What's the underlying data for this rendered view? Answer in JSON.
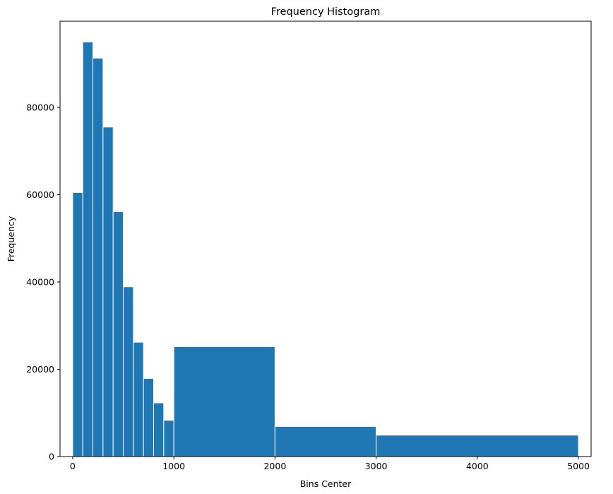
{
  "chart_data": {
    "type": "bar",
    "title": "Frequency Histogram",
    "xlabel": "Bins Center",
    "ylabel": "Frequency",
    "xlim": [
      -125,
      5125
    ],
    "ylim": [
      0,
      99750
    ],
    "x_ticks": [
      0,
      1000,
      2000,
      3000,
      4000,
      5000
    ],
    "y_ticks": [
      0,
      20000,
      40000,
      60000,
      80000
    ],
    "grid": false,
    "bar_color": "#1f77b4",
    "edge_color": "#ffffff",
    "bins": [
      {
        "start": 0,
        "end": 100,
        "value": 60500
      },
      {
        "start": 100,
        "end": 200,
        "value": 95000
      },
      {
        "start": 200,
        "end": 300,
        "value": 91300
      },
      {
        "start": 300,
        "end": 400,
        "value": 75500
      },
      {
        "start": 400,
        "end": 500,
        "value": 56100
      },
      {
        "start": 500,
        "end": 600,
        "value": 38900
      },
      {
        "start": 600,
        "end": 700,
        "value": 26200
      },
      {
        "start": 700,
        "end": 800,
        "value": 17900
      },
      {
        "start": 800,
        "end": 900,
        "value": 12300
      },
      {
        "start": 900,
        "end": 1000,
        "value": 8300
      },
      {
        "start": 1000,
        "end": 2000,
        "value": 25200
      },
      {
        "start": 2000,
        "end": 3000,
        "value": 6900
      },
      {
        "start": 3000,
        "end": 5000,
        "value": 4900
      }
    ]
  }
}
